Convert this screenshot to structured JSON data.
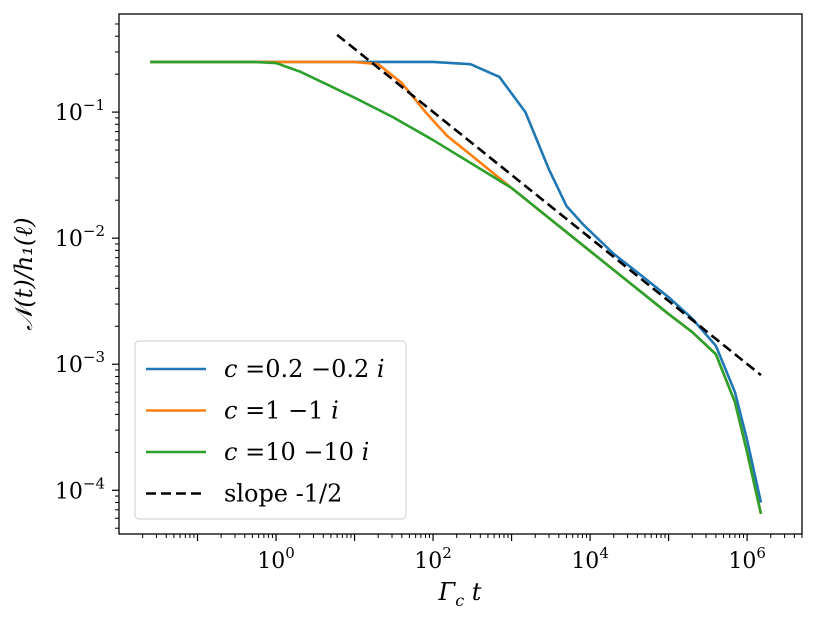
{
  "chart_data": {
    "type": "line",
    "xscale": "log",
    "yscale": "log",
    "xlim": [
      0.01,
      5000000
    ],
    "ylim": [
      4.5e-05,
      0.6
    ],
    "xlabel": "Γ_c t",
    "ylabel": "𝒩(t)/h₁(ℓ)",
    "xlabel_parts": {
      "main": "Γ",
      "sub": "c",
      "rest": " t"
    },
    "ylabel_text": "𝒩(t)/h₁(ℓ)",
    "x_ticks": [
      {
        "value": 1,
        "base": "10",
        "exp": "0"
      },
      {
        "value": 100,
        "base": "10",
        "exp": "2"
      },
      {
        "value": 10000,
        "base": "10",
        "exp": "4"
      },
      {
        "value": 1000000,
        "base": "10",
        "exp": "6"
      }
    ],
    "y_ticks": [
      {
        "value": 0.1,
        "base": "10",
        "exp": "−1"
      },
      {
        "value": 0.01,
        "base": "10",
        "exp": "−2"
      },
      {
        "value": 0.001,
        "base": "10",
        "exp": "−3"
      },
      {
        "value": 0.0001,
        "base": "10",
        "exp": "−4"
      }
    ],
    "legend_position": "lower-left",
    "series": [
      {
        "name": "c =0.2 −0.2 i",
        "legend": {
          "c": "c",
          "eq": " =0.2 −0.2 ",
          "i": "i"
        },
        "color": "#1f77b4",
        "style": "solid",
        "x": [
          0.025,
          1,
          10,
          100,
          300,
          700,
          1500,
          3000,
          5000,
          8000,
          20000,
          50000,
          100000,
          200000,
          400000,
          700000,
          1000000,
          1500000
        ],
        "y": [
          0.25,
          0.25,
          0.25,
          0.25,
          0.24,
          0.19,
          0.1,
          0.035,
          0.018,
          0.013,
          0.0075,
          0.0048,
          0.0034,
          0.0023,
          0.0014,
          0.0006,
          0.00025,
          8e-05
        ]
      },
      {
        "name": "c =1 −1 i",
        "legend": {
          "c": "c",
          "eq": " =1 −1 ",
          "i": "i"
        },
        "color": "#ff7f0e",
        "style": "solid",
        "x": [
          0.025,
          1,
          10,
          20,
          40,
          80,
          150,
          300,
          1000,
          10000,
          100000,
          200000,
          400000,
          700000,
          1000000,
          1500000
        ],
        "y": [
          0.25,
          0.25,
          0.25,
          0.24,
          0.17,
          0.1,
          0.065,
          0.046,
          0.025,
          0.0079,
          0.0025,
          0.0018,
          0.0012,
          0.0005,
          0.0002,
          6.5e-05
        ]
      },
      {
        "name": "c =10 −10 i",
        "legend": {
          "c": "c",
          "eq": " =10 −10 ",
          "i": "i"
        },
        "color": "#2ca02c",
        "style": "solid",
        "x": [
          0.025,
          0.5,
          1,
          2,
          5,
          10,
          30,
          100,
          1000,
          10000,
          100000,
          200000,
          400000,
          700000,
          1000000,
          1500000
        ],
        "y": [
          0.25,
          0.25,
          0.245,
          0.21,
          0.16,
          0.13,
          0.092,
          0.06,
          0.025,
          0.0079,
          0.0025,
          0.0018,
          0.0012,
          0.0005,
          0.0002,
          6.5e-05
        ]
      },
      {
        "name": "slope -1/2",
        "legend": {
          "text": "slope -1/2"
        },
        "color": "#000000",
        "style": "dashed",
        "x": [
          6,
          1500000
        ],
        "y": [
          0.41,
          0.00082
        ]
      }
    ]
  }
}
